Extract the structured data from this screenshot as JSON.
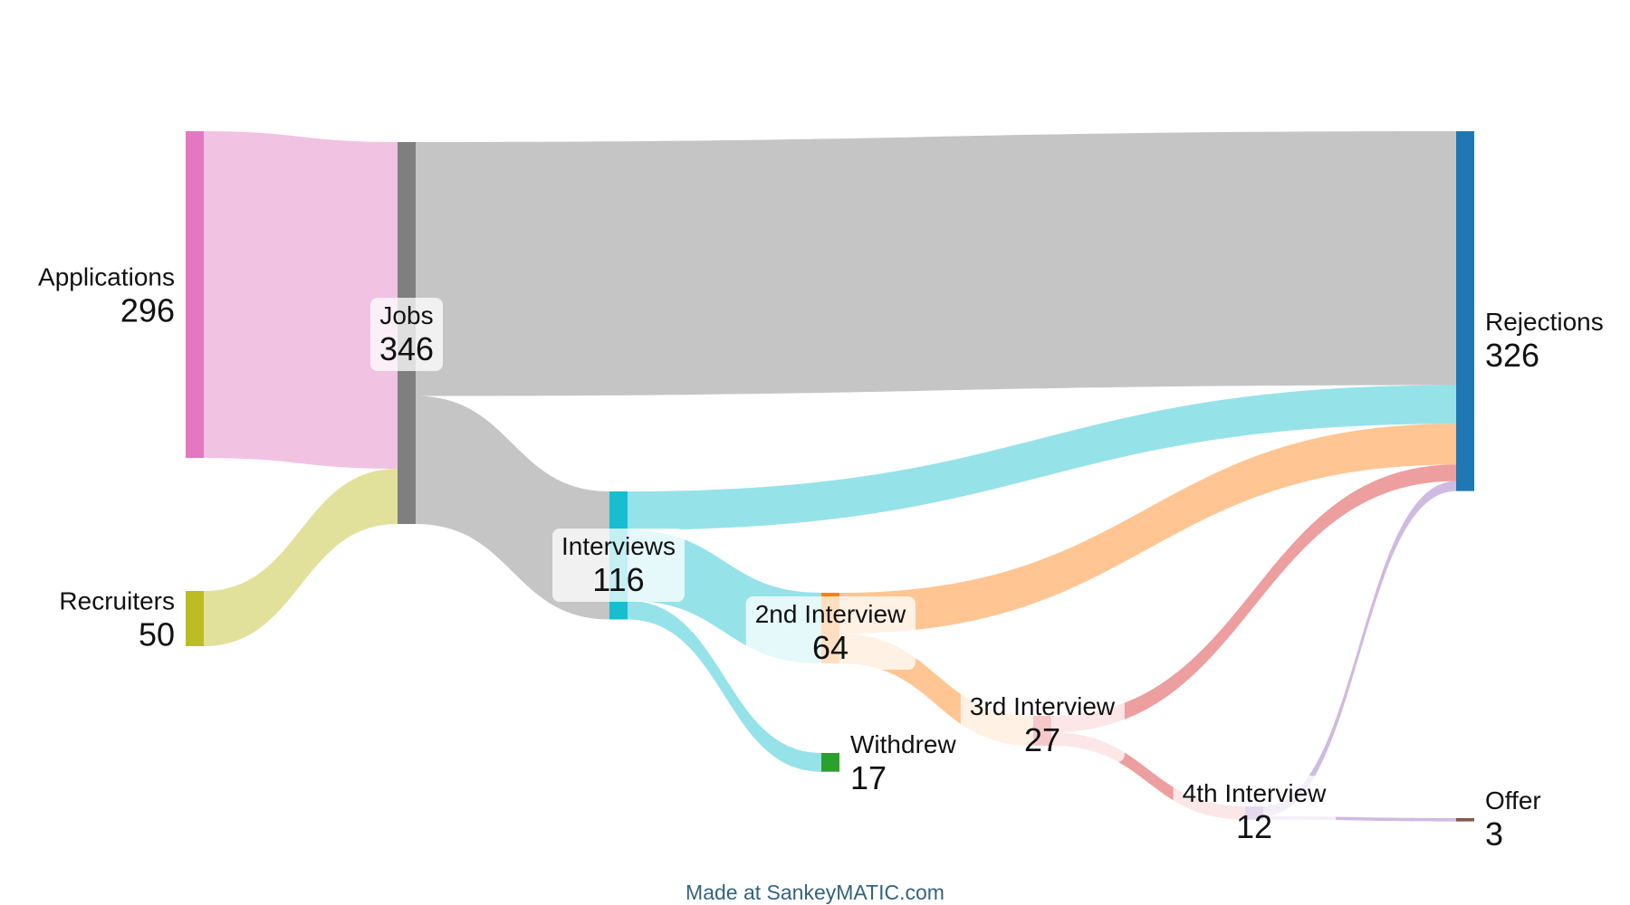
{
  "chart_data": {
    "type": "sankey",
    "nodes": [
      {
        "id": "applications",
        "name": "Applications",
        "value": 296,
        "color": "#e377c2"
      },
      {
        "id": "recruiters",
        "name": "Recruiters",
        "value": 50,
        "color": "#bcbd22"
      },
      {
        "id": "jobs",
        "name": "Jobs",
        "value": 346,
        "color": "#7f7f7f"
      },
      {
        "id": "interviews",
        "name": "Interviews",
        "value": 116,
        "color": "#17becf"
      },
      {
        "id": "second",
        "name": "2nd Interview",
        "value": 64,
        "color": "#ff7f0e"
      },
      {
        "id": "withdrew",
        "name": "Withdrew",
        "value": 17,
        "color": "#2ca02c"
      },
      {
        "id": "third",
        "name": "3rd Interview",
        "value": 27,
        "color": "#d62728"
      },
      {
        "id": "fourth",
        "name": "4th Interview",
        "value": 12,
        "color": "#9467bd"
      },
      {
        "id": "rejections",
        "name": "Rejections",
        "value": 326,
        "color": "#1f77b4"
      },
      {
        "id": "offer",
        "name": "Offer",
        "value": 3,
        "color": "#8c564b"
      }
    ],
    "links": [
      {
        "source": "applications",
        "target": "jobs",
        "value": 296
      },
      {
        "source": "recruiters",
        "target": "jobs",
        "value": 50
      },
      {
        "source": "jobs",
        "target": "rejections",
        "value": 230
      },
      {
        "source": "jobs",
        "target": "interviews",
        "value": 116
      },
      {
        "source": "interviews",
        "target": "rejections",
        "value": 35
      },
      {
        "source": "interviews",
        "target": "second",
        "value": 64
      },
      {
        "source": "interviews",
        "target": "withdrew",
        "value": 17
      },
      {
        "source": "second",
        "target": "rejections",
        "value": 37
      },
      {
        "source": "second",
        "target": "third",
        "value": 27
      },
      {
        "source": "third",
        "target": "rejections",
        "value": 15
      },
      {
        "source": "third",
        "target": "fourth",
        "value": 12
      },
      {
        "source": "fourth",
        "target": "rejections",
        "value": 9
      },
      {
        "source": "fourth",
        "target": "offer",
        "value": 3
      }
    ]
  },
  "credit": "Made at SankeyMATIC.com"
}
